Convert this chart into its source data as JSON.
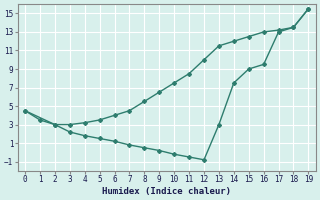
{
  "xlabel": "Humidex (Indice chaleur)",
  "ylabel": "",
  "background_color": "#d8f0ec",
  "grid_color": "#ffffff",
  "line_color": "#2e7d6e",
  "x_upper": [
    0,
    2,
    3,
    4,
    5,
    6,
    7,
    8,
    9,
    10,
    11,
    12,
    13,
    14,
    15,
    16,
    17,
    18,
    19
  ],
  "y_upper": [
    4.5,
    3.0,
    3.0,
    3.2,
    3.5,
    4.0,
    4.5,
    5.5,
    6.5,
    7.5,
    8.5,
    10.0,
    11.5,
    12.0,
    12.5,
    13.0,
    13.2,
    13.5,
    15.5
  ],
  "x_lower": [
    0,
    1,
    2,
    3,
    4,
    5,
    6,
    7,
    8,
    9,
    10,
    11,
    12,
    13,
    14,
    15,
    16,
    17,
    18,
    19
  ],
  "y_lower": [
    4.5,
    3.5,
    3.0,
    2.2,
    1.8,
    1.5,
    1.2,
    0.8,
    0.5,
    0.2,
    -0.2,
    -0.5,
    -0.8,
    3.0,
    7.5,
    9.0,
    9.5,
    13.0,
    13.5,
    15.5
  ],
  "xlim": [
    -0.5,
    19.5
  ],
  "ylim": [
    -2,
    16
  ],
  "xticks": [
    0,
    1,
    2,
    3,
    4,
    5,
    6,
    7,
    8,
    9,
    10,
    11,
    12,
    13,
    14,
    15,
    16,
    17,
    18,
    19
  ],
  "yticks": [
    -1,
    1,
    3,
    5,
    7,
    9,
    11,
    13,
    15
  ]
}
